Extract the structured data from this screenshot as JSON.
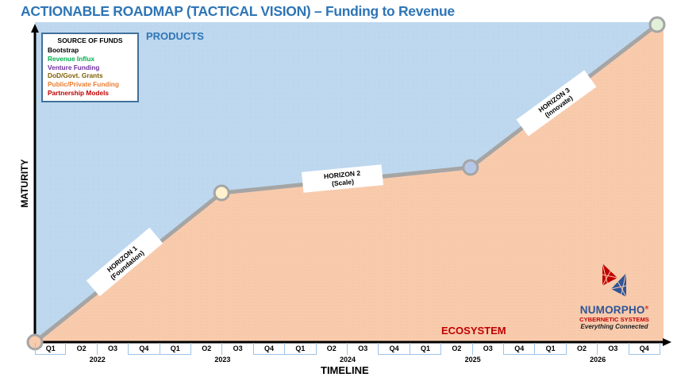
{
  "title": "ACTIONABLE ROADMAP (TACTICAL VISION) – Funding to Revenue",
  "legend": {
    "heading": "SOURCE OF FUNDS",
    "items": [
      {
        "label": "Bootstrap",
        "color": "#000000"
      },
      {
        "label": "Revenue Influx",
        "color": "#00B050"
      },
      {
        "label": "Venture Funding",
        "color": "#7030A0"
      },
      {
        "label": "DoD/Govt. Grants",
        "color": "#7F6000"
      },
      {
        "label": "Public/Private Funding",
        "color": "#ED7D31"
      },
      {
        "label": "Partnership Models",
        "color": "#C00000"
      }
    ]
  },
  "areas": {
    "top_label": "PRODUCTS",
    "bottom_label": "ECOSYSTEM",
    "top_color": "#BDD7EE",
    "bottom_color": "#F8CBAD"
  },
  "axes": {
    "y_label": "MATURITY",
    "x_label": "TIMELINE"
  },
  "horizons": [
    {
      "name": "HORIZON 1",
      "subtitle": "(Foundation)"
    },
    {
      "name": "HORIZON 2",
      "subtitle": "(Scale)"
    },
    {
      "name": "HORIZON 3",
      "subtitle": "(Innovate)"
    }
  ],
  "milestones": [
    {
      "quarter_index": 0,
      "maturity": 0,
      "fill": "#F8CBAD"
    },
    {
      "quarter_index": 6,
      "maturity": 0.47,
      "fill": "#FFF2CC"
    },
    {
      "quarter_index": 14,
      "maturity": 0.55,
      "fill": "#B4C7E7"
    },
    {
      "quarter_index": 20,
      "maturity": 1.0,
      "fill": "#E2F0D9"
    }
  ],
  "timeline": {
    "quarters": [
      "Q1",
      "O2",
      "O3",
      "Q4",
      "Q1",
      "O2",
      "O3",
      "Q4",
      "Q1",
      "O2",
      "O3",
      "Q4",
      "Q1",
      "O2",
      "O3",
      "Q4",
      "Q1",
      "O2",
      "O3",
      "Q4"
    ],
    "years": [
      "2022",
      "2023",
      "2024",
      "2025",
      "2026"
    ]
  },
  "logo": {
    "brand": "NUMORPHO",
    "registered": "®",
    "subtitle": "CYBERNETIC SYSTEMS",
    "tagline": "Everything Connected"
  }
}
